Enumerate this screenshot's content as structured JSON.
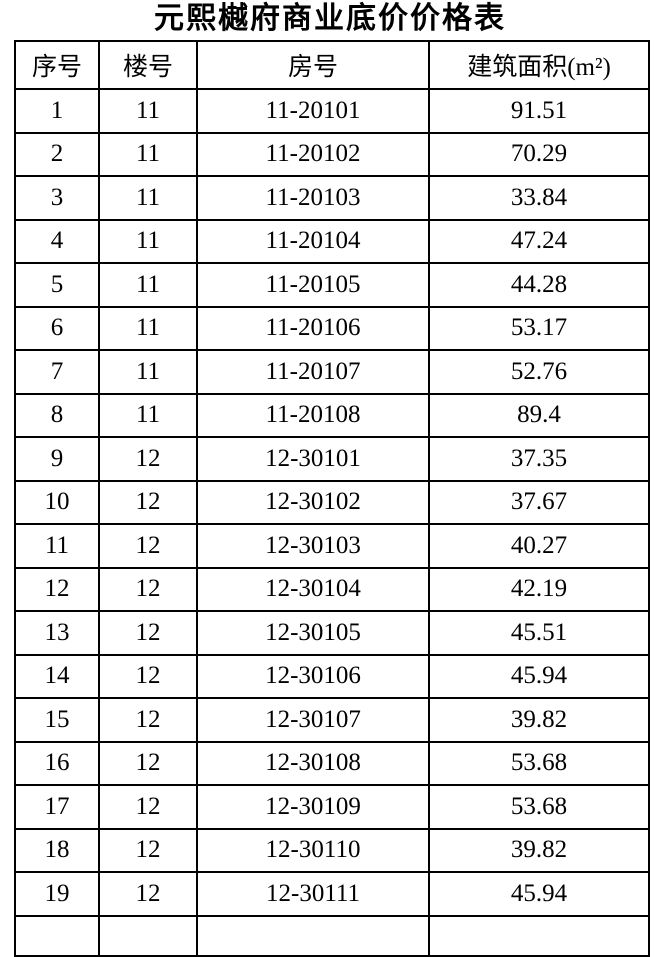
{
  "page": {
    "title": "元熙樾府商业底价价格表"
  },
  "colors": {
    "background": "#ffffff",
    "text": "#000000",
    "border": "#000000"
  },
  "table": {
    "headers": [
      "序号",
      "楼号",
      "房号",
      "建筑面积(m²)"
    ],
    "rows": [
      [
        "1",
        "11",
        "11-20101",
        "91.51"
      ],
      [
        "2",
        "11",
        "11-20102",
        "70.29"
      ],
      [
        "3",
        "11",
        "11-20103",
        "33.84"
      ],
      [
        "4",
        "11",
        "11-20104",
        "47.24"
      ],
      [
        "5",
        "11",
        "11-20105",
        "44.28"
      ],
      [
        "6",
        "11",
        "11-20106",
        "53.17"
      ],
      [
        "7",
        "11",
        "11-20107",
        "52.76"
      ],
      [
        "8",
        "11",
        "11-20108",
        "89.4"
      ],
      [
        "9",
        "12",
        "12-30101",
        "37.35"
      ],
      [
        "10",
        "12",
        "12-30102",
        "37.67"
      ],
      [
        "11",
        "12",
        "12-30103",
        "40.27"
      ],
      [
        "12",
        "12",
        "12-30104",
        "42.19"
      ],
      [
        "13",
        "12",
        "12-30105",
        "45.51"
      ],
      [
        "14",
        "12",
        "12-30106",
        "45.94"
      ],
      [
        "15",
        "12",
        "12-30107",
        "39.82"
      ],
      [
        "16",
        "12",
        "12-30108",
        "53.68"
      ],
      [
        "17",
        "12",
        "12-30109",
        "53.68"
      ],
      [
        "18",
        "12",
        "12-30110",
        "39.82"
      ],
      [
        "19",
        "12",
        "12-30111",
        "45.94"
      ]
    ]
  }
}
